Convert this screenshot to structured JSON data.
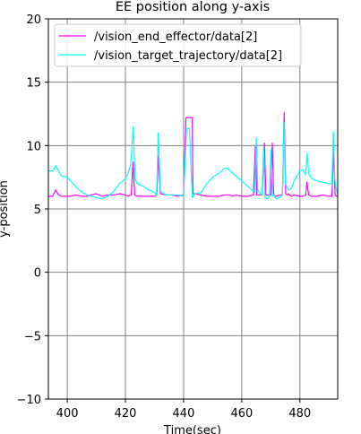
{
  "chart_data": {
    "type": "line",
    "title": "EE position along y-axis",
    "xlabel": "Time(sec)",
    "ylabel": "y-position",
    "xlim": [
      393.5,
      493
    ],
    "ylim": [
      -10,
      20
    ],
    "xticks": [
      400,
      420,
      440,
      460,
      480
    ],
    "yticks": [
      -10,
      -5,
      0,
      5,
      10,
      15,
      20
    ],
    "ytick_labels": [
      "−10",
      "−5",
      "0",
      "5",
      "10",
      "15",
      "20"
    ],
    "grid": true,
    "legend_position": "top-left",
    "series": [
      {
        "name": "/vision_end_effector/data[2]",
        "color": "#ff00ff",
        "x": [
          393.5,
          395,
          396,
          397,
          398,
          399,
          401,
          403,
          405,
          407,
          408,
          410,
          412,
          414,
          416,
          418,
          420,
          421,
          422,
          422.6,
          423.2,
          424,
          426,
          428,
          430,
          430.8,
          431.3,
          432,
          434,
          436,
          438,
          440,
          440.8,
          441,
          442,
          443,
          443.2,
          444,
          446,
          448,
          450,
          452,
          454,
          456,
          456.8,
          458,
          460,
          462,
          464,
          464.7,
          465.2,
          466,
          467,
          467.8,
          468.3,
          469,
          470,
          470.5,
          471,
          471.5,
          472,
          473,
          474,
          474.6,
          475.1,
          475.7,
          476,
          477,
          478,
          480,
          481,
          482,
          482.4,
          483,
          484,
          486,
          488,
          490,
          491,
          491.6,
          492.1,
          492.5,
          493
        ],
        "y": [
          6.0,
          6.0,
          6.5,
          6.1,
          6.0,
          6.0,
          6.0,
          6.1,
          6.0,
          6.0,
          6.1,
          6.2,
          6.0,
          6.1,
          6.1,
          6.2,
          6.1,
          6.0,
          6.1,
          8.7,
          6.1,
          6.0,
          6.0,
          6.0,
          6.0,
          6.1,
          9.2,
          6.2,
          6.1,
          6.1,
          6.0,
          6.1,
          12.2,
          12.2,
          12.2,
          12.2,
          6.2,
          6.2,
          6.1,
          6.0,
          6.0,
          6.0,
          6.1,
          6.1,
          6.0,
          6.1,
          6.0,
          6.0,
          6.1,
          10.0,
          6.1,
          6.1,
          6.1,
          10.2,
          6.1,
          6.1,
          6.1,
          10.2,
          6.1,
          6.0,
          6.0,
          6.1,
          6.1,
          12.6,
          6.2,
          6.1,
          6.2,
          6.0,
          6.1,
          6.0,
          6.0,
          6.1,
          7.1,
          6.1,
          6.0,
          6.0,
          6.1,
          6.0,
          6.0,
          9.6,
          6.1,
          6.0,
          6.0
        ]
      },
      {
        "name": "/vision_target_trajectory/data[2]",
        "color": "#00ffff",
        "x": [
          393.5,
          395,
          396,
          397,
          398,
          400,
          402,
          404,
          406,
          408,
          410,
          412,
          414,
          416,
          418,
          420,
          421,
          421.8,
          422.7,
          423.3,
          424,
          426,
          428,
          430,
          430.7,
          431.3,
          432,
          434,
          436,
          438,
          440,
          441,
          442,
          443,
          444,
          446,
          448,
          450,
          452,
          454,
          455,
          456,
          458,
          460,
          462,
          463.5,
          464.5,
          465,
          465.5,
          466,
          467,
          467.5,
          468,
          469,
          469.5,
          470,
          470.6,
          471,
          471.5,
          472,
          473,
          474,
          474.5,
          475,
          476,
          477,
          478,
          479,
          480,
          481,
          482,
          482.5,
          483,
          484,
          486,
          488,
          490,
          491,
          491.5,
          492,
          492.6,
          493
        ],
        "y": [
          8.0,
          8.0,
          8.4,
          8.0,
          7.6,
          7.5,
          7.0,
          6.5,
          6.2,
          6.0,
          5.9,
          5.8,
          6.0,
          6.4,
          7.0,
          7.4,
          7.9,
          8.5,
          11.5,
          7.4,
          7.0,
          6.8,
          6.5,
          6.3,
          6.1,
          11.0,
          6.4,
          6.1,
          6.1,
          6.1,
          6.0,
          11.3,
          11.4,
          5.9,
          6.2,
          6.3,
          7.0,
          7.5,
          7.8,
          8.2,
          8.2,
          8.0,
          7.6,
          7.2,
          6.8,
          6.5,
          6.3,
          10.6,
          6.5,
          6.3,
          6.1,
          9.8,
          5.9,
          5.8,
          6.0,
          9.7,
          6.0,
          6.1,
          5.9,
          5.8,
          5.9,
          6.1,
          11.8,
          7.0,
          6.5,
          6.6,
          7.2,
          7.6,
          8.0,
          8.1,
          7.7,
          9.4,
          7.8,
          7.4,
          7.2,
          7.1,
          7.0,
          7.0,
          11.1,
          7.3,
          6.5,
          6.2
        ]
      }
    ]
  }
}
